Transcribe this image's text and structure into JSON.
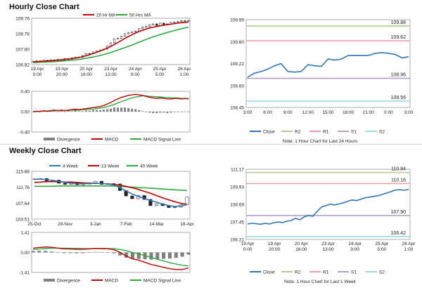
{
  "sections": {
    "hourly_title": "Hourly Close Chart",
    "weekly_title": "Weekly Close Chart"
  },
  "notes": {
    "hourly_note": "Note: 1 Hour Chart for Last 24 Hours",
    "weekly_note": "Note: 1 Hour Chart for Last 1 Week"
  },
  "colors": {
    "close": "#2e75b6",
    "ma_short": "#c00000",
    "ma_long": "#2eaa3c",
    "r2": "#a9d18e",
    "r1": "#e8a0a8",
    "s1": "#b4a0c8",
    "s2": "#9dd9ee",
    "divergence": "#7f7f7f",
    "macd": "#c00000",
    "signal": "#2eaa3c",
    "week4": "#2e75b6",
    "week13": "#c00000",
    "week40": "#2eaa3c"
  },
  "chart_data": [
    {
      "id": "hourly_price",
      "type": "candlestick",
      "legend": [
        "20 Hr MA",
        "50 Hrs MA"
      ],
      "x_ticks": [
        [
          "19 Apr",
          "0:00"
        ],
        [
          "19 Apr",
          "20:00"
        ],
        [
          "20 Apr",
          "16:00"
        ],
        [
          "23 Apr",
          "13:00"
        ],
        [
          "24 Apr",
          "9:00"
        ],
        [
          "25 Apr",
          "5:00"
        ],
        [
          "26 Apr",
          "1:00"
        ]
      ],
      "y_ticks": [
        "109.76",
        "108.78",
        "107.80",
        "106.82"
      ],
      "ylim": [
        106.82,
        109.76
      ],
      "close": [
        107.02,
        107.06,
        106.98,
        107.1,
        107.05,
        107.12,
        107.08,
        107.15,
        107.1,
        107.2,
        107.15,
        107.25,
        107.3,
        107.28,
        107.4,
        107.52,
        107.5,
        107.62,
        107.68,
        107.75,
        107.8,
        108.0,
        108.2,
        108.45,
        108.5,
        108.62,
        108.78,
        108.85,
        108.9,
        108.95,
        109.1,
        109.2,
        109.25,
        109.35,
        109.4,
        109.3,
        109.45,
        109.35,
        109.4,
        109.5,
        109.52,
        109.55,
        109.6,
        109.58,
        109.62
      ],
      "ma20": [
        107.0,
        107.0,
        107.02,
        107.03,
        107.05,
        107.06,
        107.08,
        107.1,
        107.12,
        107.15,
        107.17,
        107.2,
        107.23,
        107.27,
        107.32,
        107.38,
        107.45,
        107.52,
        107.6,
        107.68,
        107.77,
        107.87,
        107.97,
        108.1,
        108.22,
        108.35,
        108.48,
        108.6,
        108.72,
        108.82,
        108.92,
        109.0,
        109.08,
        109.15,
        109.2,
        109.24,
        109.28,
        109.32,
        109.35,
        109.38,
        109.42,
        109.45,
        109.48,
        109.5,
        109.52
      ],
      "ma50": [
        106.95,
        106.96,
        106.97,
        106.98,
        106.99,
        107.0,
        107.01,
        107.02,
        107.04,
        107.06,
        107.08,
        107.1,
        107.12,
        107.15,
        107.18,
        107.22,
        107.26,
        107.3,
        107.35,
        107.4,
        107.46,
        107.52,
        107.59,
        107.66,
        107.74,
        107.82,
        107.9,
        107.98,
        108.06,
        108.15,
        108.24,
        108.33,
        108.42,
        108.5,
        108.58,
        108.65,
        108.72,
        108.79,
        108.86,
        108.92,
        108.98,
        109.04,
        109.1,
        109.15,
        109.2
      ]
    },
    {
      "id": "hourly_macd",
      "type": "line",
      "legend": [
        "Divergence",
        "MACD",
        "MACD Signal Line"
      ],
      "y_ticks": [
        "0.40",
        "0.00",
        "-0.40"
      ],
      "ylim": [
        -0.4,
        0.4
      ],
      "macd": [
        0.0,
        0.01,
        0.0,
        0.02,
        0.01,
        0.02,
        0.03,
        0.02,
        0.03,
        0.02,
        0.03,
        0.04,
        0.05,
        0.04,
        0.05,
        0.06,
        0.07,
        0.08,
        0.09,
        0.1,
        0.12,
        0.15,
        0.18,
        0.22,
        0.25,
        0.28,
        0.3,
        0.32,
        0.33,
        0.34,
        0.33,
        0.32,
        0.3,
        0.28,
        0.27,
        0.26,
        0.27,
        0.26,
        0.25,
        0.25,
        0.26,
        0.26,
        0.25,
        0.26,
        0.25
      ],
      "signal": [
        0.0,
        0.0,
        0.01,
        0.01,
        0.01,
        0.01,
        0.02,
        0.02,
        0.02,
        0.02,
        0.02,
        0.03,
        0.03,
        0.03,
        0.04,
        0.04,
        0.05,
        0.05,
        0.06,
        0.07,
        0.08,
        0.1,
        0.12,
        0.14,
        0.17,
        0.2,
        0.22,
        0.25,
        0.27,
        0.29,
        0.3,
        0.31,
        0.31,
        0.3,
        0.3,
        0.29,
        0.29,
        0.28,
        0.28,
        0.27,
        0.27,
        0.27,
        0.26,
        0.26,
        0.26
      ]
    },
    {
      "id": "hourly_close_pivots",
      "type": "line",
      "x_ticks": [
        "3:00",
        "6:00",
        "9:00",
        "12:00",
        "15:00",
        "18:00",
        "21:00",
        "0:00",
        "3:00"
      ],
      "y_ticks": [
        "109.99",
        "109.60",
        "109.22",
        "108.83",
        "108.45"
      ],
      "ylim": [
        108.45,
        109.99
      ],
      "levels": [
        {
          "name": "R2",
          "value": 109.88,
          "label": "109.88"
        },
        {
          "name": "R1",
          "value": 109.62,
          "label": "109.62"
        },
        {
          "name": "S1",
          "value": 108.96,
          "label": "108.96"
        },
        {
          "name": "S2",
          "value": 108.56,
          "label": "108.56"
        }
      ],
      "legend": [
        "Close",
        "R2",
        "R1",
        "S1",
        "S2"
      ],
      "x": [
        0,
        1,
        2,
        3,
        4,
        5,
        6,
        7,
        8,
        9,
        10,
        11,
        12,
        13,
        14,
        15,
        16,
        17,
        18,
        19,
        20,
        21,
        22,
        23,
        24
      ],
      "close": [
        108.98,
        109.05,
        109.08,
        109.12,
        109.18,
        109.22,
        109.08,
        109.07,
        109.08,
        109.2,
        109.18,
        109.17,
        109.3,
        109.28,
        109.3,
        109.36,
        109.36,
        109.36,
        109.36,
        109.4,
        109.41,
        109.4,
        109.38,
        109.32,
        109.34
      ]
    },
    {
      "id": "weekly_price",
      "type": "candlestick",
      "legend": [
        "4 Week",
        "13 Week",
        "40 Week"
      ],
      "x_ticks": [
        "25-Oct",
        "29-Nov",
        "3-Jan",
        "7-Feb",
        "14-Mar",
        "18-Apr"
      ],
      "y_ticks": [
        "115.88",
        "111.76",
        "107.64",
        "103.51"
      ],
      "ylim": [
        103.51,
        115.88
      ],
      "close": [
        113.9,
        114.0,
        113.4,
        113.6,
        112.8,
        112.5,
        113.0,
        112.4,
        112.6,
        112.9,
        113.3,
        112.5,
        112.7,
        112.6,
        110.9,
        109.5,
        108.8,
        109.6,
        108.6,
        107.0,
        107.5,
        107.0,
        106.5,
        106.6,
        107.3,
        109.2
      ],
      "w4": [
        113.8,
        113.9,
        113.7,
        113.5,
        113.3,
        113.0,
        112.8,
        112.6,
        112.7,
        112.7,
        112.8,
        112.7,
        112.6,
        112.3,
        111.6,
        110.8,
        110.0,
        109.4,
        108.9,
        108.3,
        107.9,
        107.4,
        107.0,
        106.8,
        106.9,
        107.3
      ],
      "w13": [
        113.0,
        113.1,
        113.2,
        113.2,
        113.2,
        113.1,
        113.1,
        113.0,
        112.9,
        112.8,
        112.8,
        112.7,
        112.6,
        112.5,
        112.3,
        112.0,
        111.6,
        111.2,
        110.7,
        110.2,
        109.6,
        109.0,
        108.5,
        108.0,
        107.6,
        107.3
      ],
      "w40": [
        112.0,
        112.0,
        112.0,
        112.0,
        112.1,
        112.1,
        112.1,
        112.1,
        112.1,
        112.1,
        112.1,
        112.1,
        112.1,
        112.1,
        112.0,
        111.9,
        111.8,
        111.7,
        111.6,
        111.5,
        111.4,
        111.3,
        111.2,
        111.1,
        111.0,
        110.9
      ]
    },
    {
      "id": "weekly_macd",
      "type": "line",
      "legend": [
        "Divergence",
        "MACD",
        "MACD Signal Line"
      ],
      "y_ticks": [
        "1.41",
        "0.00",
        "-1.41"
      ],
      "ylim": [
        -1.41,
        1.41
      ],
      "macd": [
        0.3,
        0.35,
        0.38,
        0.36,
        0.3,
        0.25,
        0.24,
        0.22,
        0.22,
        0.25,
        0.28,
        0.27,
        0.25,
        0.2,
        0.0,
        -0.25,
        -0.45,
        -0.55,
        -0.7,
        -0.85,
        -0.95,
        -1.05,
        -1.15,
        -1.2,
        -1.2,
        -1.1
      ],
      "signal": [
        0.2,
        0.24,
        0.27,
        0.3,
        0.3,
        0.3,
        0.29,
        0.28,
        0.27,
        0.26,
        0.27,
        0.27,
        0.27,
        0.26,
        0.21,
        0.12,
        0.0,
        -0.1,
        -0.22,
        -0.35,
        -0.48,
        -0.6,
        -0.72,
        -0.82,
        -0.9,
        -0.95
      ]
    },
    {
      "id": "weekly_close_pivots",
      "type": "line",
      "x_ticks": [
        [
          "19 Apr",
          "0:00"
        ],
        [
          "19 Apr",
          "20:00"
        ],
        [
          "20 Apr",
          "16:00"
        ],
        [
          "23 Apr",
          "13:00"
        ],
        [
          "24 Apr",
          "9:00"
        ],
        [
          "25 Apr",
          "5:00"
        ],
        [
          "26 Apr",
          "1:00"
        ]
      ],
      "y_ticks": [
        "111.17",
        "109.93",
        "108.69",
        "107.45",
        "106.21"
      ],
      "ylim": [
        106.21,
        111.17
      ],
      "levels": [
        {
          "name": "R2",
          "value": 110.94,
          "label": "110.94"
        },
        {
          "name": "R1",
          "value": 110.16,
          "label": "110.16"
        },
        {
          "name": "S1",
          "value": 107.9,
          "label": "107.90"
        },
        {
          "name": "S2",
          "value": 106.42,
          "label": "106.42"
        }
      ],
      "legend": [
        "Close",
        "R2",
        "R1",
        "S1",
        "S2"
      ],
      "close": [
        107.3,
        107.35,
        107.32,
        107.28,
        107.35,
        107.3,
        107.38,
        107.45,
        107.4,
        107.5,
        107.55,
        107.7,
        107.6,
        107.8,
        107.9,
        107.85,
        108.2,
        108.5,
        108.6,
        108.7,
        108.65,
        108.72,
        108.8,
        108.9,
        109.0,
        108.95,
        109.05,
        109.15,
        109.2,
        109.25,
        109.3,
        109.4,
        109.5,
        109.6,
        109.7,
        109.72,
        109.68,
        109.75
      ]
    }
  ]
}
